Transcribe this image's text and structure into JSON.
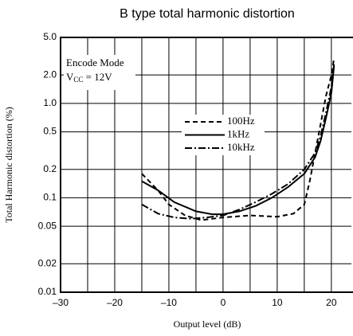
{
  "chart_data": {
    "type": "line",
    "title": "B type total harmonic distortion",
    "xlabel": "Output level (dB)",
    "ylabel": "Total Harmonic distortion (%)",
    "annotation": [
      "Encode Mode",
      [
        "V",
        "CC",
        " = 12V"
      ]
    ],
    "xlim": [
      -30,
      23.7
    ],
    "xticks": [
      {
        "value": -30,
        "label": "–30"
      },
      {
        "value": -20,
        "label": "–20"
      },
      {
        "value": -10,
        "label": "–10"
      },
      0,
      10,
      20
    ],
    "x_minor_grid": [
      -25,
      -15,
      -5,
      5,
      15
    ],
    "ylim": [
      0.01,
      5
    ],
    "yscale": "log",
    "yticks": [
      {
        "value": 5,
        "label": "5.0"
      },
      {
        "value": 2,
        "label": "2.0"
      },
      {
        "value": 1,
        "label": "1.0"
      },
      0.5,
      0.2,
      0.1,
      0.05,
      0.02,
      0.01
    ],
    "grid": true,
    "series": [
      {
        "name": "100Hz",
        "color": "#000000",
        "dash": "dashed",
        "x": [
          -15,
          -12,
          -10,
          -7,
          -4,
          0,
          5,
          10,
          13,
          15,
          16,
          17,
          18,
          19,
          20,
          20.5
        ],
        "values": [
          0.18,
          0.12,
          0.085,
          0.065,
          0.058,
          0.062,
          0.065,
          0.063,
          0.068,
          0.085,
          0.15,
          0.3,
          0.6,
          1.2,
          2.0,
          3.0
        ]
      },
      {
        "name": "1kHz",
        "color": "#000000",
        "dash": "solid",
        "x": [
          -15,
          -12,
          -9,
          -5,
          -2,
          0,
          3,
          6,
          9,
          12,
          15,
          17,
          18,
          19,
          20,
          20.5
        ],
        "values": [
          0.15,
          0.12,
          0.09,
          0.072,
          0.067,
          0.067,
          0.072,
          0.082,
          0.1,
          0.13,
          0.18,
          0.27,
          0.4,
          0.7,
          1.3,
          2.5
        ]
      },
      {
        "name": "10kHz",
        "color": "#000000",
        "dash": "dashdot",
        "x": [
          -15,
          -12,
          -9,
          -6,
          -3,
          0,
          3,
          6,
          9,
          12,
          15,
          17,
          18,
          19,
          20,
          20.5
        ],
        "values": [
          0.085,
          0.068,
          0.062,
          0.06,
          0.062,
          0.065,
          0.075,
          0.09,
          0.11,
          0.14,
          0.2,
          0.3,
          0.45,
          0.8,
          1.5,
          2.6
        ]
      }
    ]
  }
}
